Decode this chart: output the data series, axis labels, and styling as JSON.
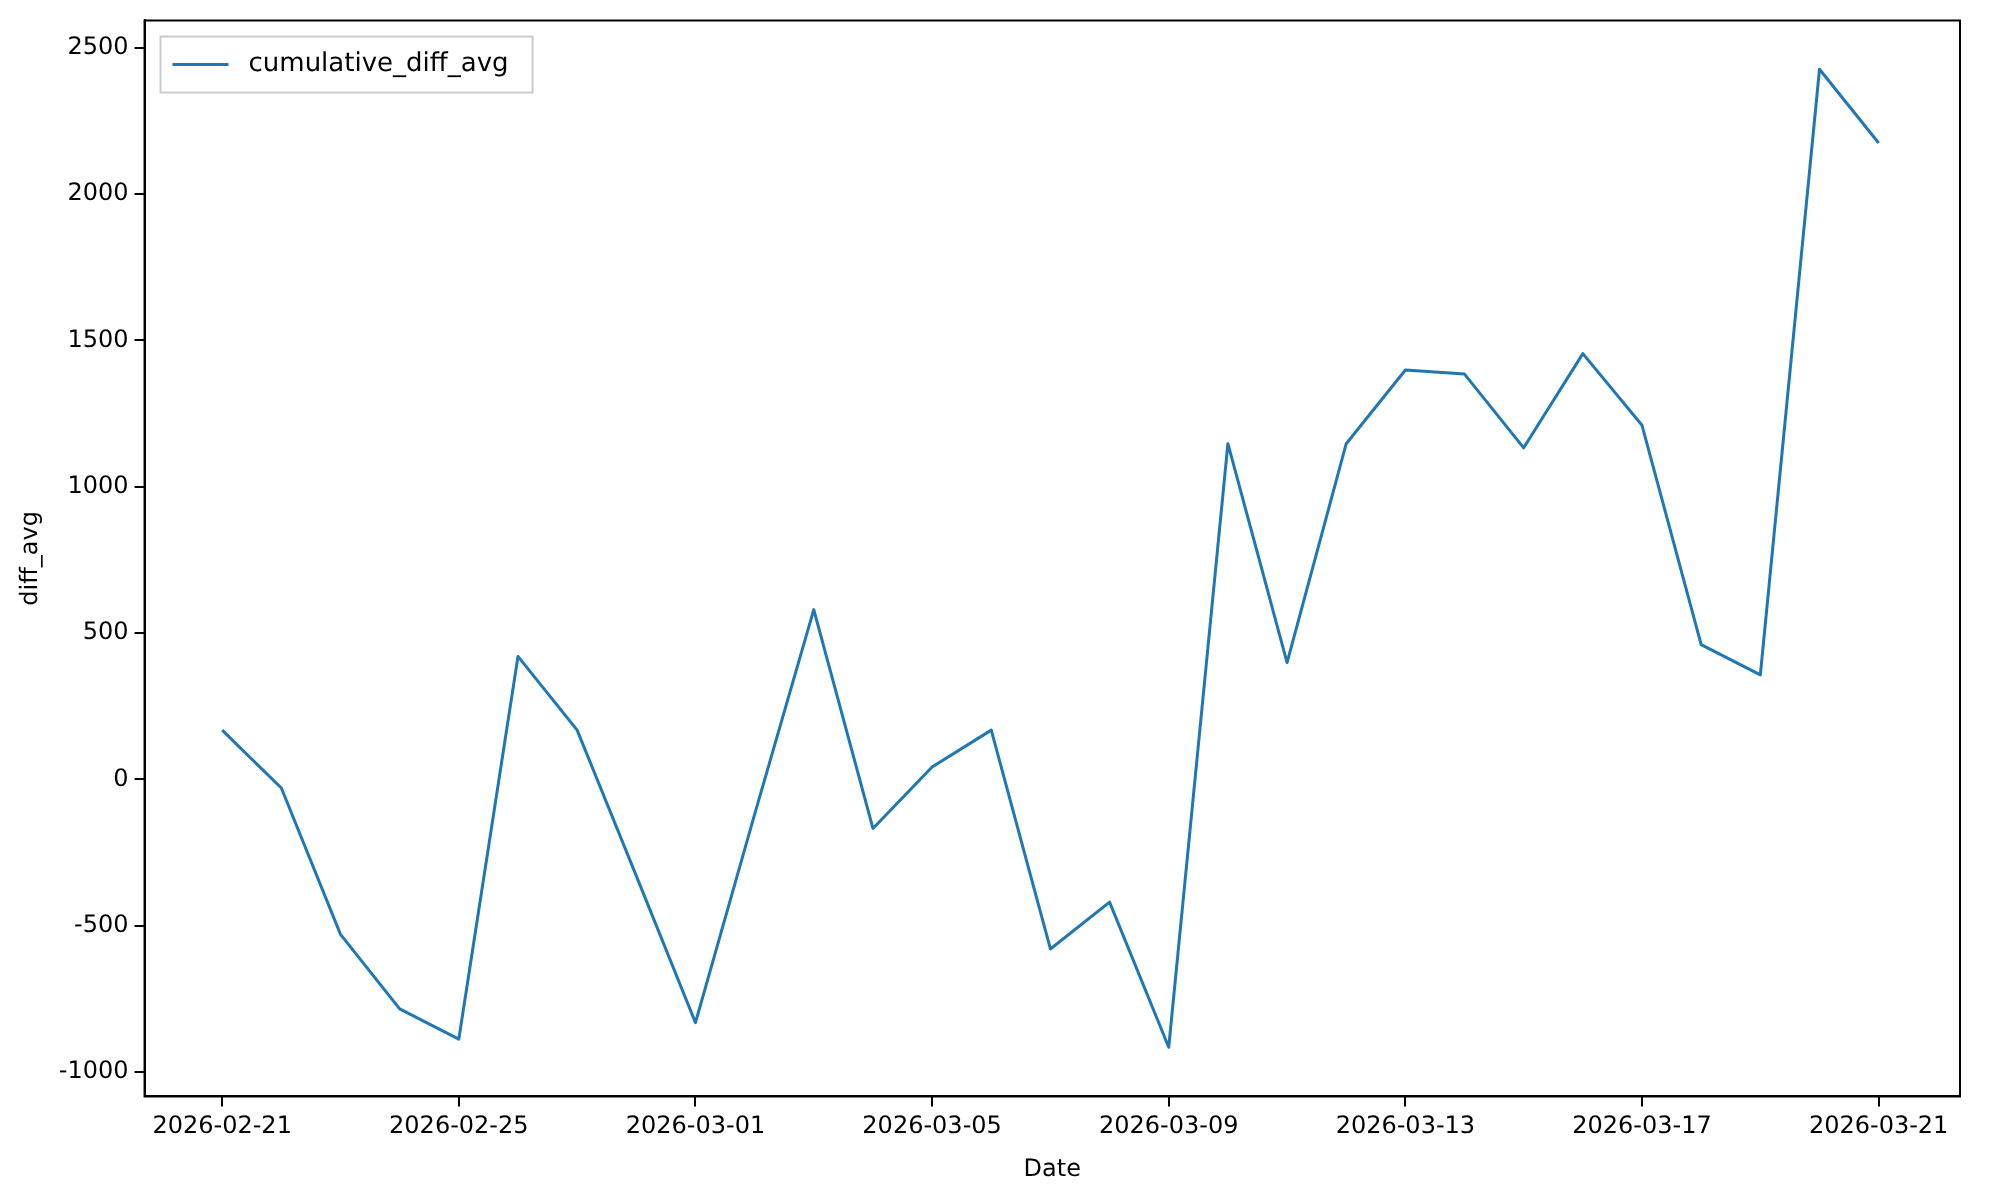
{
  "chart_data": {
    "type": "line",
    "xlabel": "Date",
    "ylabel": "diff_avg",
    "x": [
      "2026-02-21",
      "2026-02-22",
      "2026-02-23",
      "2026-02-24",
      "2026-02-25",
      "2026-02-26",
      "2026-02-27",
      "2026-02-28",
      "2026-03-01",
      "2026-03-02",
      "2026-03-03",
      "2026-03-04",
      "2026-03-05",
      "2026-03-06",
      "2026-03-07",
      "2026-03-08",
      "2026-03-09",
      "2026-03-10",
      "2026-03-11",
      "2026-03-12",
      "2026-03-13",
      "2026-03-14",
      "2026-03-15",
      "2026-03-16",
      "2026-03-17",
      "2026-03-18",
      "2026-03-19",
      "2026-03-20",
      "2026-03-21"
    ],
    "series": [
      {
        "name": "cumulative_diff_avg",
        "color": "#1f77b4",
        "values": [
          168,
          -30,
          -530,
          -785,
          -888,
          420,
          168,
          -330,
          -832,
          -120,
          580,
          -168,
          42,
          168,
          -580,
          -420,
          -916,
          1147,
          399,
          1147,
          1399,
          1385,
          1133,
          1455,
          1210,
          460,
          357,
          2427,
          2175
        ]
      }
    ],
    "xlim": [
      "2026-02-19T16:30",
      "2026-03-22T09:00"
    ],
    "xticks": [
      "2026-02-21",
      "2026-02-25",
      "2026-03-01",
      "2026-03-05",
      "2026-03-09",
      "2026-03-13",
      "2026-03-17",
      "2026-03-21"
    ],
    "ylim": [
      -1084,
      2594
    ],
    "yticks": [
      -1000,
      -500,
      0,
      500,
      1000,
      1500,
      2000,
      2500
    ],
    "grid": false,
    "legend": "top left",
    "marker": "none",
    "line_style": "solid"
  }
}
